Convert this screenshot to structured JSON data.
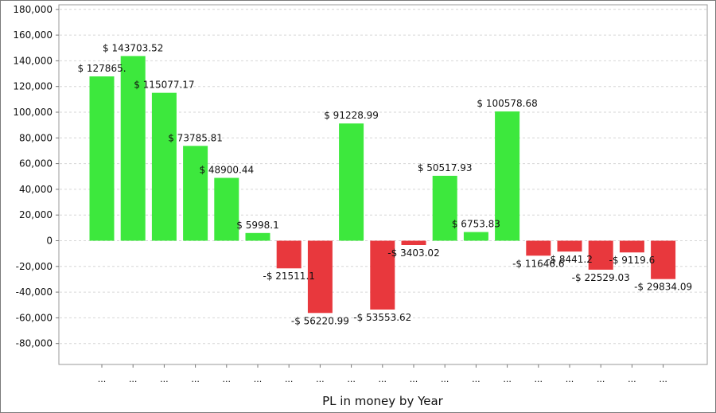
{
  "chart_data": {
    "type": "bar",
    "title": "",
    "xlabel": "PL in money by Year",
    "ylabel": "",
    "ylim": [
      -90000,
      180000
    ],
    "yticks": [
      180000,
      160000,
      140000,
      120000,
      100000,
      80000,
      60000,
      40000,
      20000,
      0,
      -20000,
      -40000,
      -60000,
      -80000
    ],
    "ytick_labels": [
      "180,000",
      "160,000",
      "140,000",
      "120,000",
      "100,000",
      "80,000",
      "60,000",
      "40,000",
      "20,000",
      "0",
      "-20,000",
      "-40,000",
      "-60,000",
      "-80,000"
    ],
    "grid": true,
    "positive_color": "#3de83d",
    "negative_color": "#e8383d",
    "categories": [
      "...",
      "...",
      "...",
      "...",
      "...",
      "...",
      "...",
      "...",
      "...",
      "...",
      "...",
      "...",
      "...",
      "...",
      "...",
      "...",
      "...",
      "...",
      "..."
    ],
    "values": [
      127865,
      143703.52,
      115077.17,
      73785.81,
      48900.44,
      5998.1,
      -21511.1,
      -56220.99,
      91228.99,
      -53553.62,
      -3403.02,
      50517.93,
      6753.83,
      100578.68,
      -11646.6,
      -8441.2,
      -22529.03,
      -9119.6,
      -29834.09
    ],
    "data_labels": [
      "$ 127865.",
      "$ 143703.52",
      "$ 115077.17",
      "$ 73785.81",
      "$ 48900.44",
      "$ 5998.1",
      "-$ 21511.1",
      "-$ 56220.99",
      "$ 91228.99",
      "-$ 53553.62",
      "-$ 3403.02",
      "$ 50517.93",
      "$ 6753.83",
      "$ 100578.68",
      "-$ 11646.6",
      "-$ 8441.2",
      "-$ 22529.03",
      "-$ 9119.6",
      "-$ 29834.09"
    ]
  }
}
